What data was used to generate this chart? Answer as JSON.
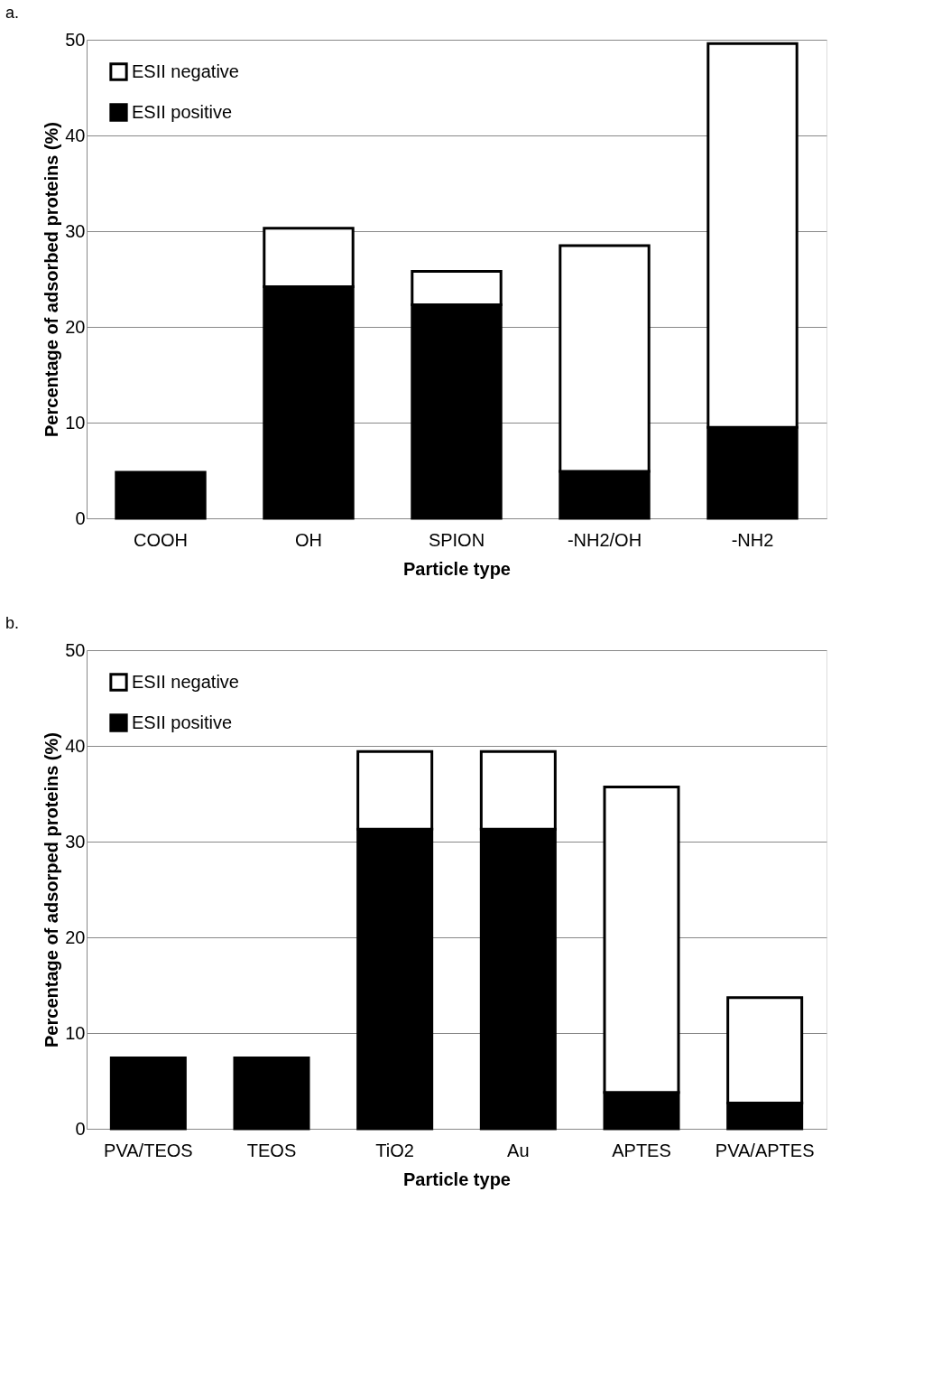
{
  "chart_data": [
    {
      "type": "bar",
      "title": "a.",
      "xlabel": "Particle type",
      "ylabel": "Percentage of adsorbed proteins (%)",
      "categories": [
        "COOH",
        "OH",
        "SPION",
        "-NH2/OH",
        "-NH2"
      ],
      "stacked": true,
      "ylim": [
        0,
        50
      ],
      "yticks": [
        0,
        10,
        20,
        30,
        40,
        50
      ],
      "grid": "y",
      "legend": "top left",
      "series": [
        {
          "name": "ESII positive",
          "color": "#000000",
          "values": [
            4.8,
            24.2,
            22.3,
            4.9,
            9.5
          ]
        },
        {
          "name": "ESII negative",
          "color": "#ffffff",
          "values": [
            null,
            6.1,
            3.5,
            23.6,
            40.1
          ]
        }
      ]
    },
    {
      "type": "bar",
      "title": "b.",
      "xlabel": "Particle type",
      "ylabel": "Percentage of adsorped proteins (%)",
      "categories": [
        "PVA/TEOS",
        "TEOS",
        "TiO2",
        "Au",
        "APTES",
        "PVA/APTES"
      ],
      "stacked": true,
      "ylim": [
        0,
        50
      ],
      "yticks": [
        0,
        10,
        20,
        30,
        40,
        50
      ],
      "grid": "y",
      "legend": "top left",
      "series": [
        {
          "name": "ESII positive",
          "color": "#000000",
          "values": [
            7.4,
            7.4,
            31.3,
            31.3,
            3.8,
            2.7
          ]
        },
        {
          "name": "ESII negative",
          "color": "#ffffff",
          "values": [
            null,
            null,
            8.1,
            8.1,
            31.9,
            11.0
          ]
        }
      ]
    }
  ]
}
